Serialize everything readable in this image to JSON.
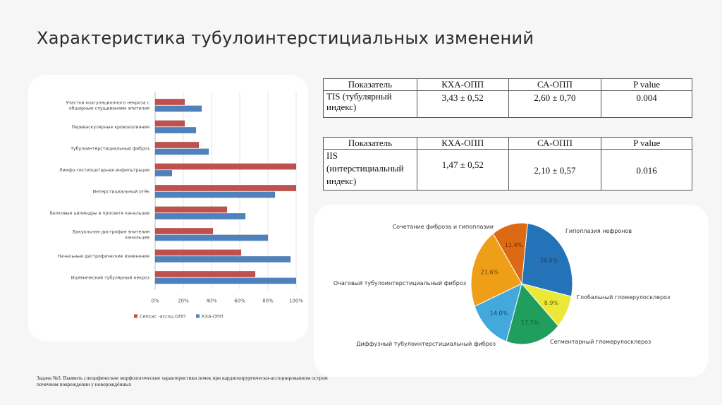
{
  "slide": {
    "title": "Характеристика тубулоинтерстициальных изменений",
    "note": "Задача №3. Выявить специфические морфологические характеристики почек при кардиохирургически-ассоциированном остром почечном повреждении у новорождённых"
  },
  "tables": [
    {
      "headers": [
        "Показатель",
        "КХА-ОПП",
        "СА-ОПП",
        "P value"
      ],
      "rows": [
        [
          "TIS (тубулярный индекс)",
          "3,43 ± 0,52",
          "2,60 ± 0,70",
          "0.004"
        ]
      ]
    },
    {
      "headers": [
        "Показатель",
        "КХА-ОПП",
        "СА-ОПП",
        "P value"
      ],
      "rows": [
        [
          "IIS (интерстициальный индекс)",
          "1,47 ± 0,52",
          "2,10 ± 0,57",
          "0.016"
        ]
      ]
    }
  ],
  "chart_data": [
    {
      "type": "bar",
      "orientation": "horizontal",
      "categories": [
        "Участки коагуляционного некроза с обширным слущиванием эпителия",
        "Периваскулярные кровоизлияния",
        "Тубулоинтерстициальный фиброз",
        "Лимфо-гистиоцитарная инфильтрация",
        "Интерстициальный отёк",
        "Белковые цилиндры в просвете канальцев",
        "Вакуольная дистрофия эпителия канальцев",
        "Начальные дистрофические изменения",
        "Ишемический тубулярный некроз"
      ],
      "series": [
        {
          "name": "Сепсис -ассоц.ОПП",
          "color": "#c0504d",
          "values": [
            21,
            21,
            31,
            100,
            100,
            51,
            41,
            61,
            71
          ]
        },
        {
          "name": "КХА-ОПП",
          "color": "#4f81bd",
          "values": [
            33,
            29,
            38,
            12,
            85,
            64,
            80,
            96,
            100
          ]
        }
      ],
      "xlim": [
        0,
        100
      ],
      "xticks": [
        "0%",
        "20%",
        "40%",
        "60%",
        "80%",
        "100%"
      ],
      "legend": "bottom"
    },
    {
      "type": "pie",
      "slices": [
        {
          "label": "Гипоплазия нефронов",
          "value_label": "26.6%",
          "value": 26.6,
          "color": "#2472b8"
        },
        {
          "label": "Глобальный гломерулосклероз",
          "value_label": "8.9%",
          "value": 8.9,
          "color": "#ece83a"
        },
        {
          "label": "Сегментарный гломерулосклероз",
          "value_label": "17.7%",
          "value": 17.7,
          "color": "#1f9e5e"
        },
        {
          "label": "Диффузный тубулоинтерстициальный фиброз",
          "value_label": "14.0%",
          "value": 14.0,
          "color": "#43a8dc"
        },
        {
          "label": "Очаговый тубулоинтерстициальный фиброз",
          "value_label": "21.6%",
          "value": 21.6,
          "color": "#ee9f17"
        },
        {
          "label": "Сочетание фиброза и гипоплазии",
          "value_label": "11.4%",
          "value": 11.4,
          "color": "#dc6a14"
        }
      ]
    }
  ]
}
